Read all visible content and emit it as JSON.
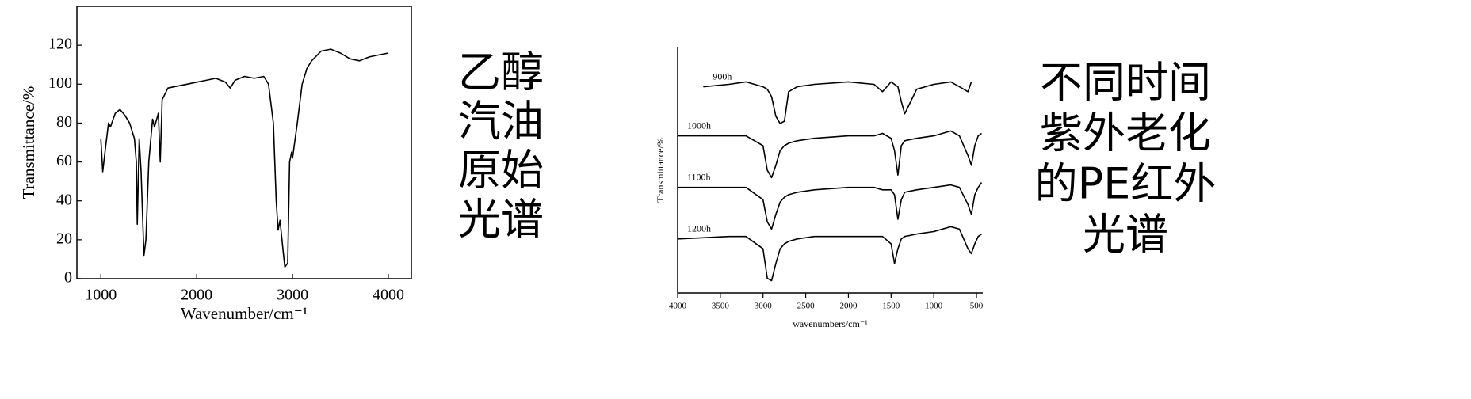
{
  "chart_data": [
    {
      "type": "line",
      "xlabel": "Wavenumber/cm⁻¹",
      "ylabel": "Transmittance/%",
      "x": [
        1000,
        1020,
        1050,
        1080,
        1100,
        1150,
        1200,
        1250,
        1300,
        1350,
        1370,
        1380,
        1400,
        1420,
        1450,
        1470,
        1500,
        1540,
        1560,
        1600,
        1620,
        1640,
        1700,
        1800,
        1900,
        2000,
        2100,
        2200,
        2300,
        2350,
        2400,
        2500,
        2600,
        2700,
        2750,
        2800,
        2830,
        2850,
        2870,
        2900,
        2920,
        2950,
        2970,
        2990,
        3000,
        3050,
        3100,
        3150,
        3200,
        3300,
        3400,
        3500,
        3600,
        3700,
        3800,
        3900,
        4000
      ],
      "values": [
        72,
        55,
        68,
        80,
        78,
        85,
        87,
        84,
        80,
        72,
        60,
        28,
        72,
        55,
        12,
        20,
        60,
        82,
        78,
        85,
        60,
        92,
        98,
        99,
        100,
        101,
        102,
        103,
        101,
        98,
        102,
        104,
        103,
        104,
        100,
        80,
        40,
        25,
        30,
        15,
        6,
        8,
        60,
        65,
        62,
        80,
        100,
        108,
        112,
        117,
        118,
        116,
        113,
        112,
        114,
        115,
        116
      ],
      "color": "#000000",
      "xlim": [
        750,
        4240
      ],
      "ylim": [
        0,
        140
      ],
      "xticks": [
        1000,
        2000,
        3000,
        4000
      ],
      "yticks": [
        0,
        20,
        40,
        60,
        80,
        100,
        120
      ],
      "caption": [
        "乙醇",
        "汽油",
        "原始",
        "光谱"
      ]
    },
    {
      "type": "line",
      "xlabel": "wavenumbers/cm⁻¹",
      "ylabel": "Transmittance/%",
      "x": [
        4000,
        3700,
        3400,
        3200,
        3000,
        2950,
        2900,
        2850,
        2800,
        2750,
        2700,
        2600,
        2400,
        2000,
        1700,
        1600,
        1500,
        1460,
        1420,
        1380,
        1340,
        1200,
        1000,
        800,
        700,
        600,
        560,
        520,
        480,
        440
      ],
      "series": [
        {
          "name": "900h",
          "color": "#000000",
          "values": [
            null,
            84,
            85,
            86,
            84,
            83,
            80,
            72,
            69,
            70,
            82,
            84,
            85,
            86,
            85,
            82,
            86,
            85,
            84,
            78,
            73,
            83,
            85,
            86,
            84,
            82,
            86,
            null,
            null,
            null
          ]
        },
        {
          "name": "1000h",
          "color": "#000000",
          "values": [
            64,
            64,
            64,
            64,
            60,
            50,
            47,
            52,
            58,
            60,
            61,
            62,
            63,
            64,
            64,
            65,
            63,
            58,
            48,
            60,
            62,
            63,
            64,
            66,
            64,
            56,
            52,
            60,
            64,
            65
          ]
        },
        {
          "name": "1100h",
          "color": "#000000",
          "values": [
            43,
            43,
            43,
            43,
            38,
            29,
            26,
            32,
            37,
            39,
            40,
            41,
            42,
            43,
            43,
            42,
            42,
            40,
            30,
            38,
            41,
            42,
            43,
            44,
            43,
            36,
            32,
            40,
            43,
            45
          ]
        },
        {
          "name": "1200h",
          "color": "#000000",
          "values": [
            22,
            22.5,
            23,
            23,
            18,
            6,
            5,
            12,
            18,
            20,
            21,
            22,
            23,
            23,
            23,
            23,
            20,
            12,
            18,
            22,
            23,
            24,
            25,
            27,
            26,
            18,
            16,
            20,
            23,
            24
          ]
        }
      ],
      "xlim": [
        4000,
        426
      ],
      "ylim": [
        0,
        100
      ],
      "xticks": [
        4000,
        3500,
        3000,
        2500,
        2000,
        1500,
        1000,
        500
      ],
      "caption": [
        "不同时间",
        "紫外老化",
        "的PE红外",
        "光谱"
      ]
    }
  ]
}
